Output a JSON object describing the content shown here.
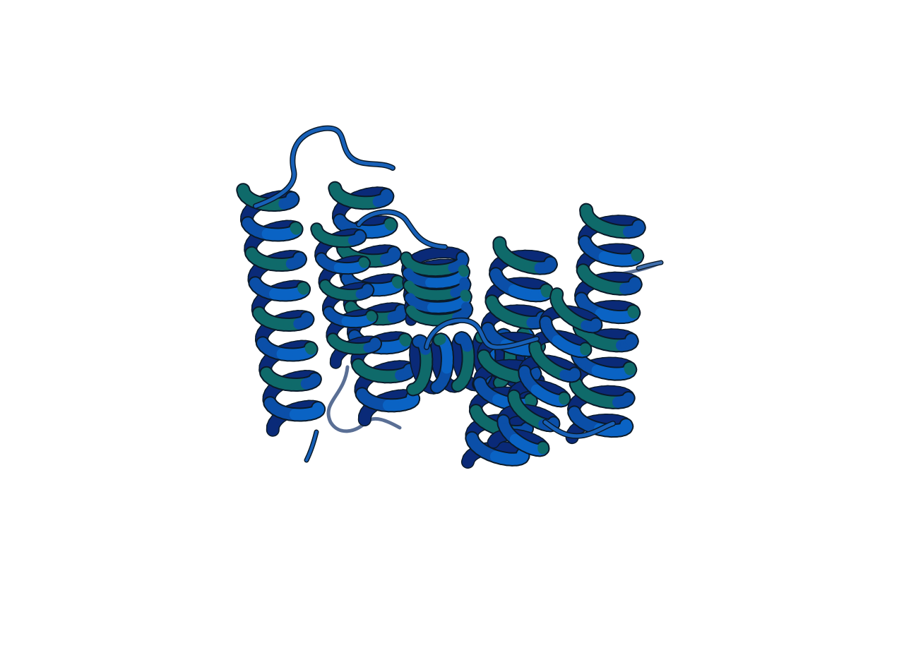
{
  "scene": {
    "background": "#ffffff",
    "style": "cartoon ribbon rendering of an all-alpha-helical protein",
    "helix_count": 7,
    "colors": {
      "ribbon_light": "#0a63c4",
      "ribbon_mid": "#0b4fa8",
      "ribbon_dark": "#0a2a78",
      "ribbon_teal": "#0f6a6a",
      "outline": "#0a1a2a",
      "loop": "#1760b8",
      "loop_faded": "#5a6f95"
    }
  }
}
